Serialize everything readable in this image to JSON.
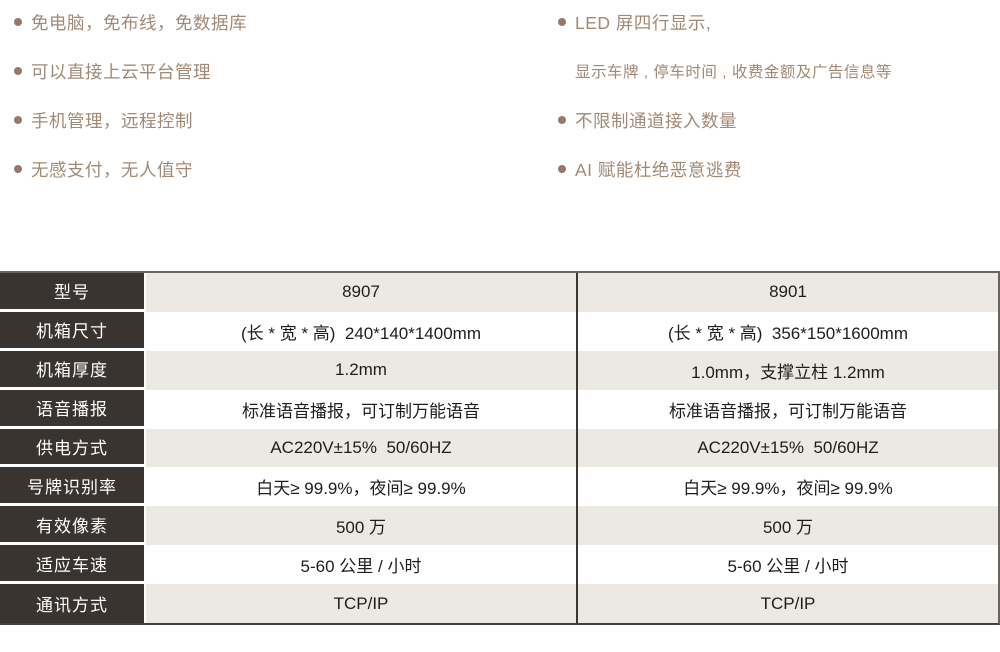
{
  "theme": {
    "accent_text": "#a28976",
    "bullet_dot": "#937a68",
    "header_bg": "#393430",
    "row_alt_bg": "#ece8e2",
    "table_text": "#1f1d1b",
    "border_dark": "#3c3734"
  },
  "features": {
    "left_items": [
      {
        "text": "免电脑，免布线，免数据库"
      },
      {
        "text": "可以直接上云平台管理"
      },
      {
        "text": "手机管理，远程控制"
      },
      {
        "text": "无感支付，无人值守"
      }
    ],
    "right_items": [
      {
        "text": "LED 屏四行显示,"
      },
      {
        "text": "显示车牌 , 停车时间 , 收费金额及广告信息等"
      },
      {
        "text": "不限制通道接入数量"
      },
      {
        "text": "AI 赋能杜绝恶意逃费"
      }
    ]
  },
  "spec_table": {
    "rows": [
      {
        "label": "型号",
        "col1": "8907",
        "col2": "8901"
      },
      {
        "label": "机箱尺寸",
        "col1": "(长 * 宽 * 高)  240*140*1400mm",
        "col2": "(长 * 宽 * 高)  356*150*1600mm"
      },
      {
        "label": "机箱厚度",
        "col1": "1.2mm",
        "col2": "1.0mm，支撑立柱 1.2mm"
      },
      {
        "label": "语音播报",
        "col1": "标准语音播报，可订制万能语音",
        "col2": "标准语音播报，可订制万能语音"
      },
      {
        "label": "供电方式",
        "col1": "AC220V±15%  50/60HZ",
        "col2": "AC220V±15%  50/60HZ"
      },
      {
        "label": "号牌识别率",
        "col1": "白天≥ 99.9%，夜间≥ 99.9%",
        "col2": "白天≥ 99.9%，夜间≥ 99.9%"
      },
      {
        "label": "有效像素",
        "col1": "500 万",
        "col2": "500 万"
      },
      {
        "label": "适应车速",
        "col1": "5-60 公里 / 小时",
        "col2": "5-60 公里 / 小时"
      },
      {
        "label": "通讯方式",
        "col1": "TCP/IP",
        "col2": "TCP/IP"
      }
    ]
  }
}
